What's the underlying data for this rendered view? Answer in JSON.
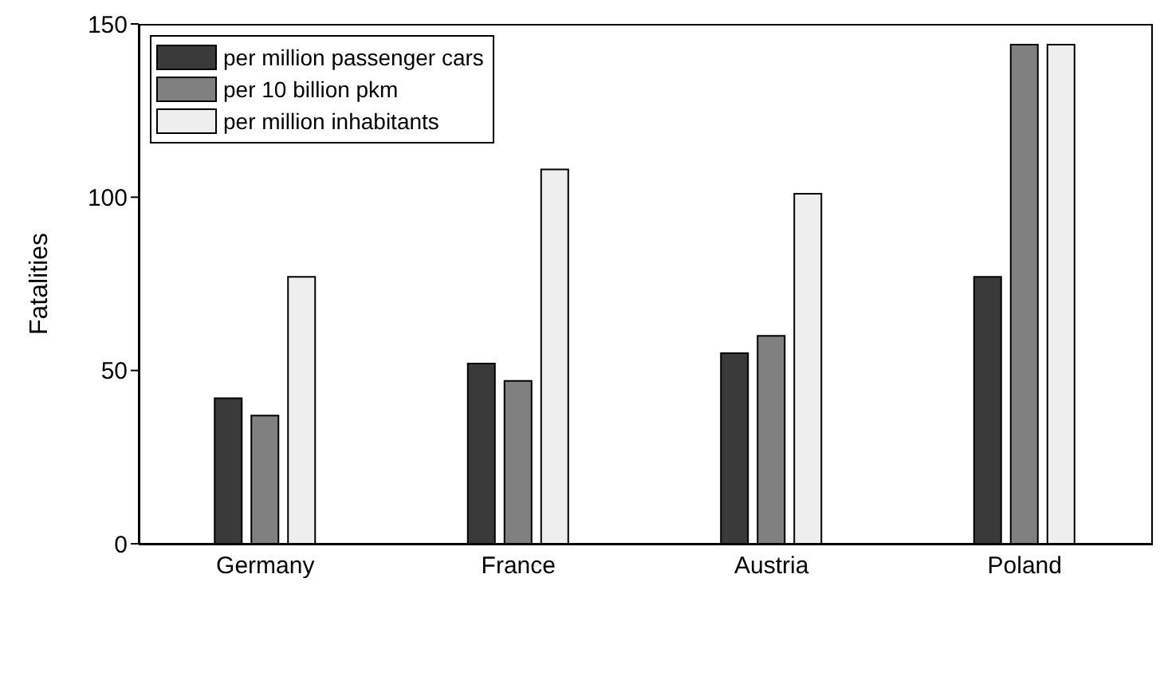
{
  "chart_data": {
    "type": "bar",
    "ylabel": "Fatalities",
    "categories": [
      "Germany",
      "France",
      "Austria",
      "Poland"
    ],
    "series": [
      {
        "name": "per million passenger cars",
        "color": "#3a3a3a",
        "values": [
          42,
          52,
          55,
          77
        ]
      },
      {
        "name": "per 10 billion pkm",
        "color": "#808080",
        "values": [
          37,
          47,
          60,
          144
        ]
      },
      {
        "name": "per million inhabitants",
        "color": "#eeeeee",
        "values": [
          77,
          108,
          101,
          144
        ]
      }
    ],
    "ylim": [
      0,
      150
    ],
    "yticks": [
      0,
      50,
      100,
      150
    ],
    "grid": false,
    "legend": "top left"
  }
}
